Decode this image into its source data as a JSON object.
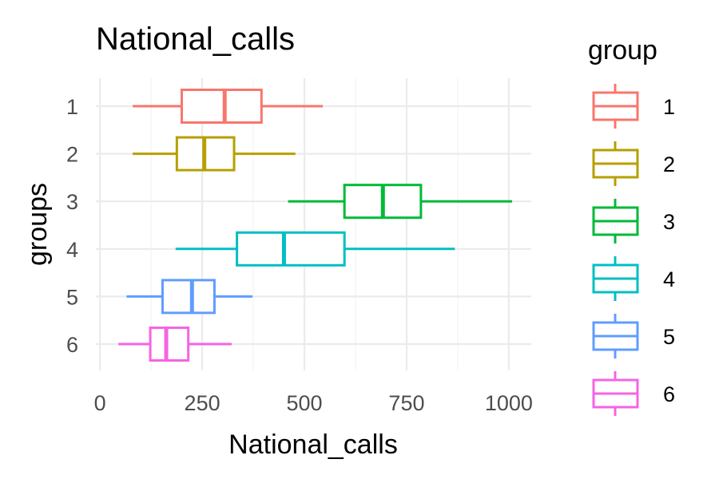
{
  "chart_data": {
    "type": "boxplot",
    "orientation": "horizontal",
    "title": "National_calls",
    "xlabel": "National_calls",
    "ylabel": "groups",
    "xlim": [
      -5,
      1060
    ],
    "x_ticks": [
      0,
      250,
      500,
      750,
      1000
    ],
    "x_tick_labels": [
      "0",
      "250",
      "500",
      "750",
      "1000"
    ],
    "grid": true,
    "legend": {
      "title": "group",
      "position": "right"
    },
    "categories": [
      "1",
      "2",
      "3",
      "4",
      "5",
      "6"
    ],
    "series": [
      {
        "name": "1",
        "color": "#F8766D",
        "whisker_low": 80,
        "q1": 200,
        "median": 305,
        "q3": 395,
        "whisker_high": 545
      },
      {
        "name": "2",
        "color": "#B79F00",
        "whisker_low": 80,
        "q1": 188,
        "median": 255,
        "q3": 328,
        "whisker_high": 478
      },
      {
        "name": "3",
        "color": "#00BA38",
        "whisker_low": 460,
        "q1": 598,
        "median": 692,
        "q3": 785,
        "whisker_high": 1008
      },
      {
        "name": "4",
        "color": "#00BFC4",
        "whisker_low": 185,
        "q1": 335,
        "median": 450,
        "q3": 598,
        "whisker_high": 868
      },
      {
        "name": "5",
        "color": "#619CFF",
        "whisker_low": 65,
        "q1": 153,
        "median": 225,
        "q3": 280,
        "whisker_high": 373
      },
      {
        "name": "6",
        "color": "#F564E3",
        "whisker_low": 45,
        "q1": 123,
        "median": 162,
        "q3": 216,
        "whisker_high": 322
      }
    ]
  }
}
